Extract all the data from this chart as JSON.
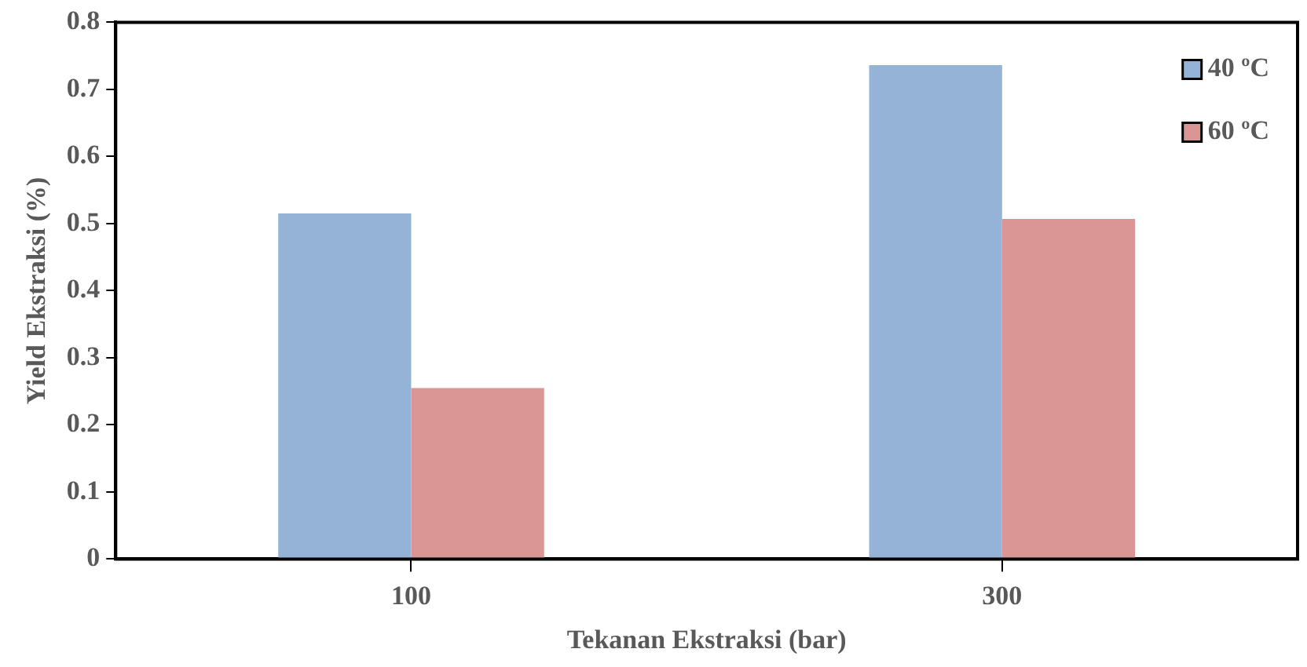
{
  "chart_data": {
    "type": "bar",
    "xlabel": "Tekanan Ekstraksi (bar)",
    "ylabel": "Yield Ekstraksi (%)",
    "categories": [
      "100",
      "300"
    ],
    "series": [
      {
        "name": "40 ºC",
        "color": "#95b3d7",
        "values": [
          0.515,
          0.736
        ]
      },
      {
        "name": "60 ºC",
        "color": "#d99694",
        "values": [
          0.255,
          0.507
        ]
      }
    ],
    "ylim": [
      0,
      0.8
    ],
    "yticks": [
      0,
      0.1,
      0.2,
      0.3,
      0.4,
      0.5,
      0.6,
      0.7,
      0.8
    ],
    "grid": false,
    "legend": "top right"
  }
}
